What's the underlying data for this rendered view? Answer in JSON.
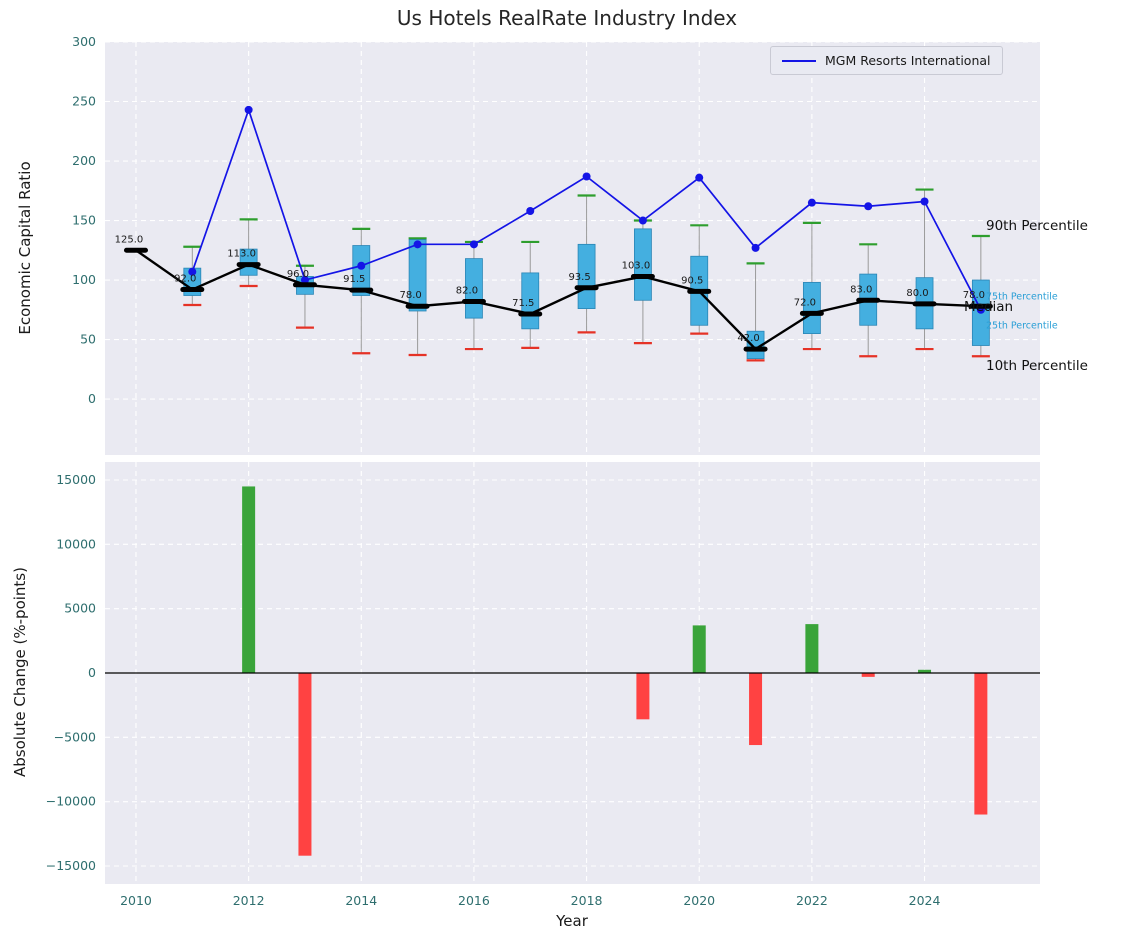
{
  "style": {
    "figure_bg": "#ffffff",
    "plot_bg": "#eaeaf2",
    "grid": "#ffffff",
    "tick": "#2e6e6e",
    "box_fill": "#44afe0",
    "box_edge": "#2a85b5",
    "whisker": "#9a9a9a",
    "cap_top": "#2e9e2e",
    "cap_bottom": "#e53226",
    "median_color": "#000000",
    "company_color": "#1414e6",
    "bar_pos": "#3aa43a",
    "bar_neg": "#ff4242",
    "annotation_minor_color": "#2a9fd6"
  },
  "chart_data": [
    {
      "type": "box",
      "title": "Us Hotels RealRate Industry Index",
      "ylabel": "Economic Capital Ratio",
      "ylim": [
        -47,
        300
      ],
      "xlim": [
        2009.45,
        2026.05
      ],
      "yticks": [
        0,
        50,
        100,
        150,
        200,
        250,
        300
      ],
      "xticks": [
        2010,
        2012,
        2014,
        2016,
        2018,
        2020,
        2022,
        2024
      ],
      "grid": true,
      "legend_position": "upper right",
      "years": [
        2010,
        2011,
        2012,
        2013,
        2014,
        2015,
        2016,
        2017,
        2018,
        2019,
        2020,
        2021,
        2022,
        2023,
        2024,
        2025
      ],
      "series": [
        {
          "name": "Median",
          "type": "line",
          "values": [
            125.0,
            92.0,
            113.0,
            96.0,
            91.5,
            78.0,
            82.0,
            71.5,
            93.5,
            103.0,
            90.5,
            42.0,
            72.0,
            83.0,
            80.0,
            78.0
          ]
        },
        {
          "name": "MGM Resorts International",
          "type": "line",
          "values": [
            null,
            107,
            243,
            100,
            112,
            130,
            130,
            158,
            187,
            150,
            186,
            127,
            165,
            162,
            166,
            75
          ]
        }
      ],
      "box": {
        "q1": [
          null,
          87,
          104,
          88,
          87,
          74,
          68,
          59,
          76,
          83,
          62,
          34,
          55,
          62,
          59,
          45
        ],
        "q3": [
          null,
          110,
          126,
          103,
          129,
          134,
          118,
          106,
          130,
          143,
          120,
          57,
          98,
          105,
          102,
          100
        ],
        "p10": [
          null,
          79,
          95,
          60,
          38.5,
          37,
          42,
          43,
          56,
          47,
          55,
          32.5,
          42,
          36,
          42,
          36
        ],
        "p90": [
          null,
          128,
          151,
          112,
          143,
          135,
          132,
          132,
          171,
          150,
          146,
          114,
          148,
          130,
          176,
          137
        ]
      },
      "annotations": [
        {
          "label": "90th Percentile",
          "value": 145,
          "emphasis": "major",
          "dx": 0
        },
        {
          "label": "75th Percentile",
          "value": 86,
          "emphasis": "minor",
          "dx": 0
        },
        {
          "label": "Median",
          "value": 77,
          "emphasis": "major",
          "dx": -22
        },
        {
          "label": "25th Percentile",
          "value": 61,
          "emphasis": "minor",
          "dx": 0
        },
        {
          "label": "10th Percentile",
          "value": 28,
          "emphasis": "major",
          "dx": 0
        }
      ]
    },
    {
      "type": "bar",
      "xlabel": "Year",
      "ylabel": "Absolute Change (%-points)",
      "ylim": [
        -16400,
        16400
      ],
      "yticks": [
        -15000,
        -10000,
        -5000,
        0,
        5000,
        10000,
        15000
      ],
      "xticks": [
        2010,
        2012,
        2014,
        2016,
        2018,
        2020,
        2022,
        2024
      ],
      "grid": true,
      "years": [
        2010,
        2011,
        2012,
        2013,
        2014,
        2015,
        2016,
        2017,
        2018,
        2019,
        2020,
        2021,
        2022,
        2023,
        2024,
        2025
      ],
      "values": [
        null,
        0,
        14500,
        -14200,
        0,
        0,
        0,
        0,
        0,
        -3600,
        3700,
        -5600,
        3800,
        -300,
        250,
        -11000
      ]
    }
  ]
}
